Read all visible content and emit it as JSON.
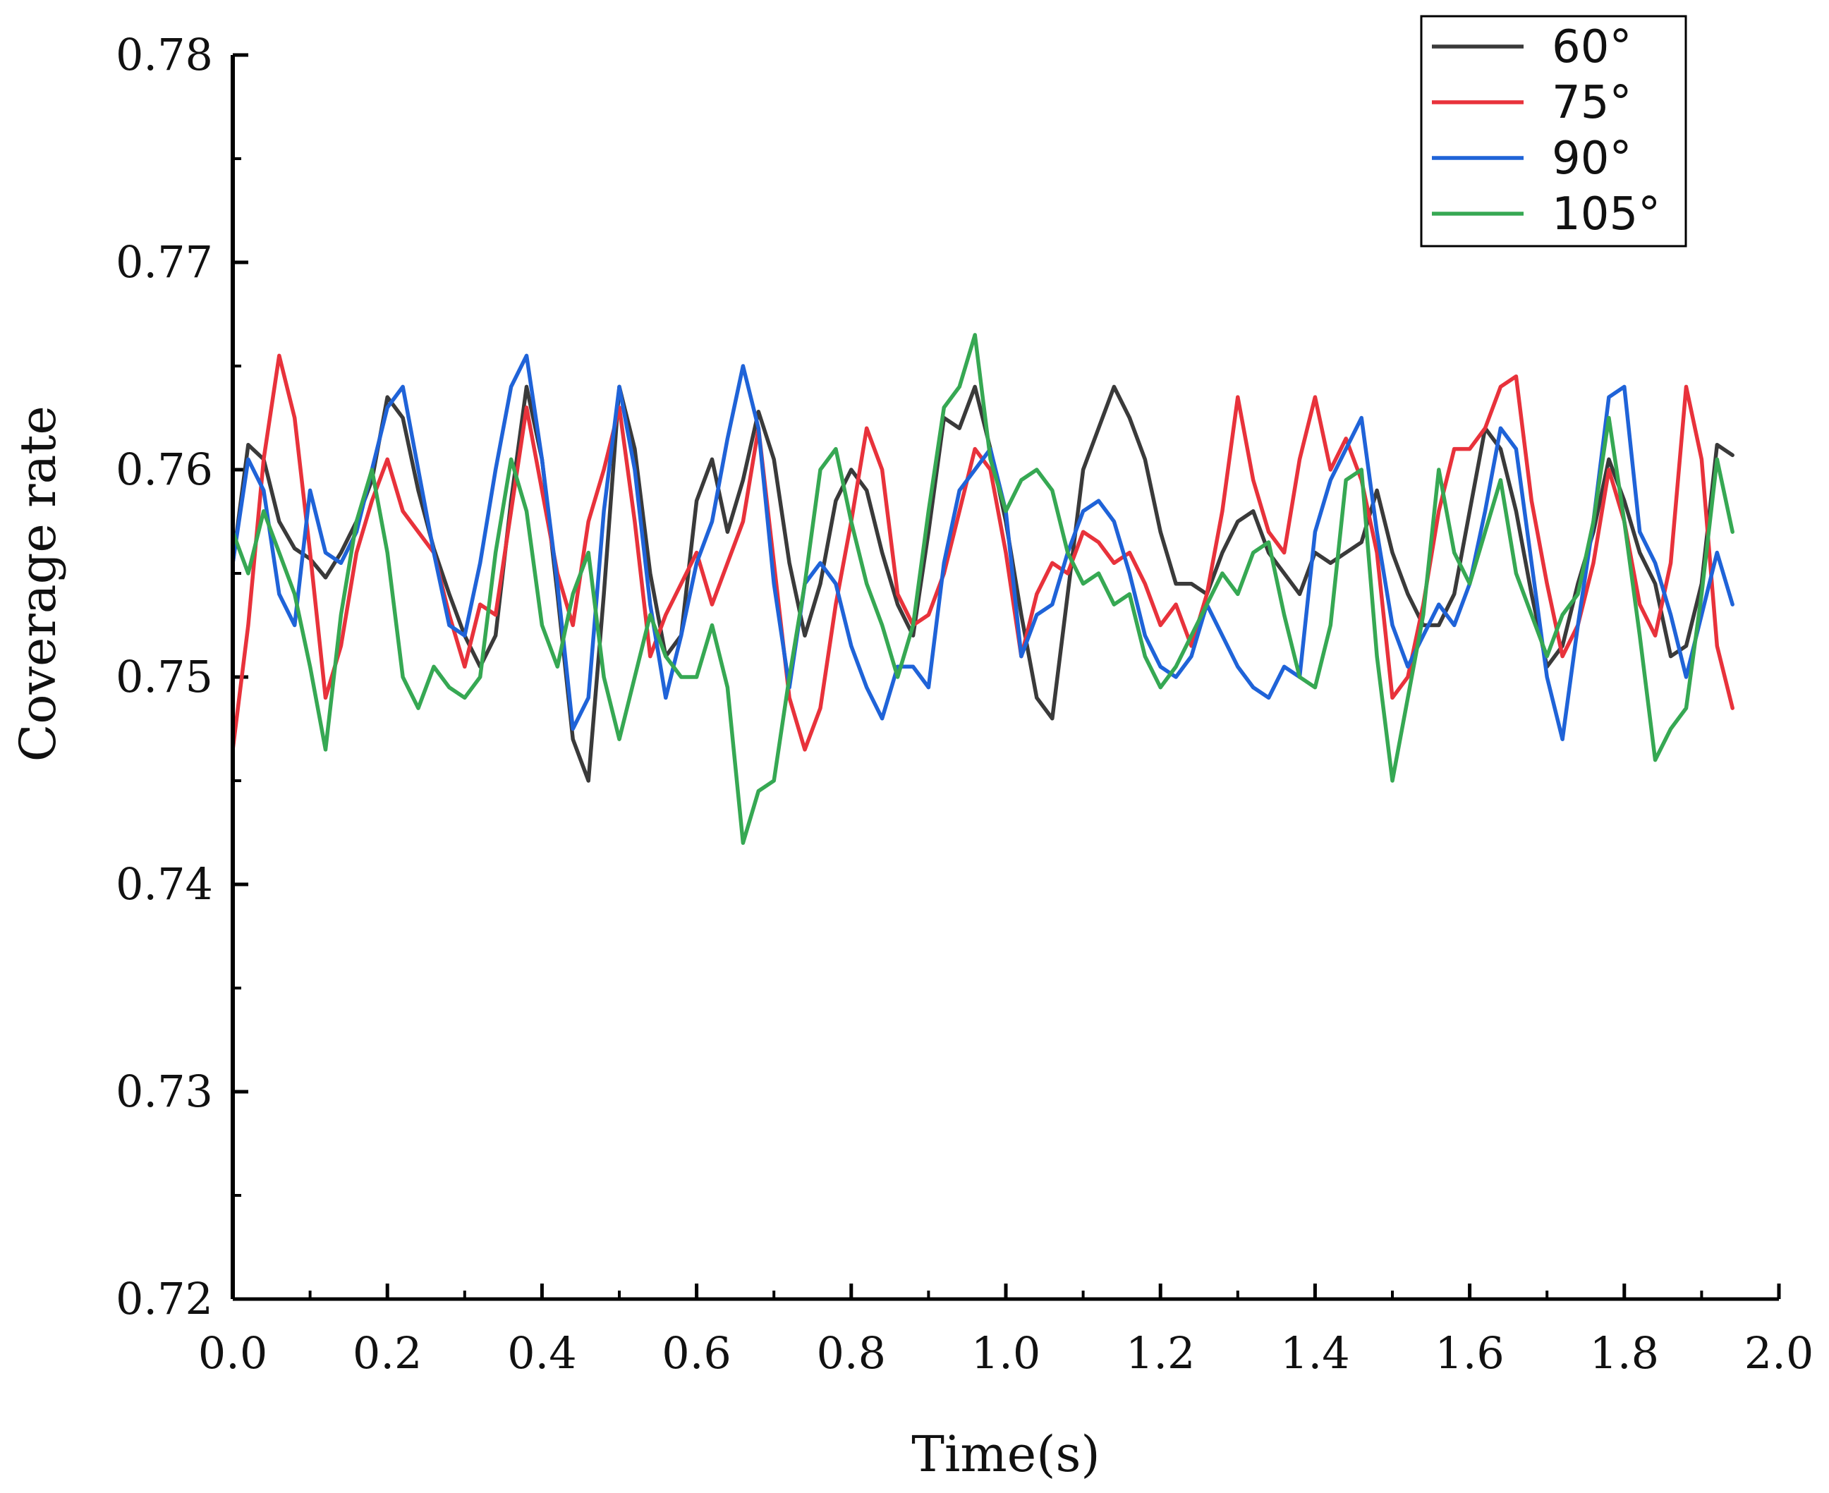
{
  "chart_data": {
    "type": "line",
    "title": "",
    "xlabel": "Time(s)",
    "ylabel": "Coverage rate",
    "xlim": [
      0.0,
      2.0
    ],
    "ylim": [
      0.72,
      0.78
    ],
    "xticks": [
      "0.0",
      "0.2",
      "0.4",
      "0.6",
      "0.8",
      "1.0",
      "1.2",
      "1.4",
      "1.6",
      "1.8",
      "2.0"
    ],
    "yticks": [
      "0.72",
      "0.73",
      "0.74",
      "0.75",
      "0.76",
      "0.77",
      "0.78"
    ],
    "legend_position": "top-right",
    "grid": false,
    "series": [
      {
        "name": "60°",
        "color": "#3a3a3a",
        "x": [
          0.0,
          0.02,
          0.04,
          0.06,
          0.08,
          0.1,
          0.12,
          0.14,
          0.16,
          0.18,
          0.2,
          0.22,
          0.24,
          0.26,
          0.28,
          0.3,
          0.32,
          0.34,
          0.36,
          0.38,
          0.4,
          0.42,
          0.44,
          0.46,
          0.48,
          0.5,
          0.52,
          0.54,
          0.56,
          0.58,
          0.6,
          0.62,
          0.64,
          0.66,
          0.68,
          0.7,
          0.72,
          0.74,
          0.76,
          0.78,
          0.8,
          0.82,
          0.84,
          0.86,
          0.88,
          0.9,
          0.92,
          0.94,
          0.96,
          0.98,
          1.0,
          1.02,
          1.04,
          1.06,
          1.08,
          1.1,
          1.12,
          1.14,
          1.16,
          1.18,
          1.2,
          1.22,
          1.24,
          1.26,
          1.28,
          1.3,
          1.32,
          1.34,
          1.36,
          1.38,
          1.4,
          1.42,
          1.44,
          1.46,
          1.48,
          1.5,
          1.52,
          1.54,
          1.56,
          1.58,
          1.6,
          1.62,
          1.64,
          1.66,
          1.68,
          1.7,
          1.72,
          1.74,
          1.76,
          1.78,
          1.8,
          1.82,
          1.84,
          1.86,
          1.88,
          1.9,
          1.92,
          1.94
        ],
        "y": [
          0.7555,
          0.7612,
          0.7605,
          0.7575,
          0.7562,
          0.7557,
          0.7548,
          0.756,
          0.7575,
          0.7595,
          0.7635,
          0.7625,
          0.759,
          0.7562,
          0.754,
          0.752,
          0.7505,
          0.752,
          0.7585,
          0.764,
          0.7605,
          0.754,
          0.747,
          0.745,
          0.754,
          0.764,
          0.761,
          0.755,
          0.751,
          0.752,
          0.7585,
          0.7605,
          0.757,
          0.7595,
          0.7628,
          0.7605,
          0.7555,
          0.752,
          0.7545,
          0.7585,
          0.76,
          0.759,
          0.756,
          0.7535,
          0.752,
          0.757,
          0.7625,
          0.762,
          0.764,
          0.761,
          0.7575,
          0.753,
          0.749,
          0.748,
          0.754,
          0.76,
          0.762,
          0.764,
          0.7625,
          0.7605,
          0.757,
          0.7545,
          0.7545,
          0.754,
          0.756,
          0.7575,
          0.758,
          0.756,
          0.755,
          0.754,
          0.756,
          0.7555,
          0.756,
          0.7565,
          0.759,
          0.756,
          0.754,
          0.7525,
          0.7525,
          0.754,
          0.758,
          0.762,
          0.761,
          0.758,
          0.754,
          0.7505,
          0.7515,
          0.7545,
          0.757,
          0.7605,
          0.7585,
          0.756,
          0.7545,
          0.751,
          0.7515,
          0.7545,
          0.7612,
          0.7607
        ]
      },
      {
        "name": "75°",
        "color": "#e8323b",
        "x": [
          0.0,
          0.02,
          0.04,
          0.06,
          0.08,
          0.1,
          0.12,
          0.14,
          0.16,
          0.18,
          0.2,
          0.22,
          0.24,
          0.26,
          0.28,
          0.3,
          0.32,
          0.34,
          0.36,
          0.38,
          0.4,
          0.42,
          0.44,
          0.46,
          0.48,
          0.5,
          0.52,
          0.54,
          0.56,
          0.58,
          0.6,
          0.62,
          0.64,
          0.66,
          0.68,
          0.7,
          0.72,
          0.74,
          0.76,
          0.78,
          0.8,
          0.82,
          0.84,
          0.86,
          0.88,
          0.9,
          0.92,
          0.94,
          0.96,
          0.98,
          1.0,
          1.02,
          1.04,
          1.06,
          1.08,
          1.1,
          1.12,
          1.14,
          1.16,
          1.18,
          1.2,
          1.22,
          1.24,
          1.26,
          1.28,
          1.3,
          1.32,
          1.34,
          1.36,
          1.38,
          1.4,
          1.42,
          1.44,
          1.46,
          1.48,
          1.5,
          1.52,
          1.54,
          1.56,
          1.58,
          1.6,
          1.62,
          1.64,
          1.66,
          1.68,
          1.7,
          1.72,
          1.74,
          1.76,
          1.78,
          1.8,
          1.82,
          1.84,
          1.86,
          1.88,
          1.9,
          1.92,
          1.94
        ],
        "y": [
          0.7465,
          0.7525,
          0.7605,
          0.7655,
          0.7625,
          0.756,
          0.749,
          0.7515,
          0.756,
          0.7585,
          0.7605,
          0.758,
          0.757,
          0.756,
          0.753,
          0.7505,
          0.7535,
          0.753,
          0.758,
          0.763,
          0.759,
          0.755,
          0.7525,
          0.7575,
          0.76,
          0.763,
          0.7575,
          0.751,
          0.753,
          0.7545,
          0.756,
          0.7535,
          0.7555,
          0.7575,
          0.762,
          0.7555,
          0.749,
          0.7465,
          0.7485,
          0.7535,
          0.7575,
          0.762,
          0.76,
          0.754,
          0.7525,
          0.753,
          0.755,
          0.758,
          0.761,
          0.76,
          0.756,
          0.751,
          0.754,
          0.7555,
          0.755,
          0.757,
          0.7565,
          0.7555,
          0.756,
          0.7545,
          0.7525,
          0.7535,
          0.7515,
          0.754,
          0.758,
          0.7635,
          0.7595,
          0.757,
          0.756,
          0.7605,
          0.7635,
          0.76,
          0.7615,
          0.7595,
          0.756,
          0.749,
          0.75,
          0.7535,
          0.758,
          0.761,
          0.761,
          0.762,
          0.764,
          0.7645,
          0.7585,
          0.7545,
          0.751,
          0.7525,
          0.7555,
          0.76,
          0.7575,
          0.7535,
          0.752,
          0.7555,
          0.764,
          0.7605,
          0.7515,
          0.7485
        ]
      },
      {
        "name": "90°",
        "color": "#1f63d8",
        "x": [
          0.0,
          0.02,
          0.04,
          0.06,
          0.08,
          0.1,
          0.12,
          0.14,
          0.16,
          0.18,
          0.2,
          0.22,
          0.24,
          0.26,
          0.28,
          0.3,
          0.32,
          0.34,
          0.36,
          0.38,
          0.4,
          0.42,
          0.44,
          0.46,
          0.48,
          0.5,
          0.52,
          0.54,
          0.56,
          0.58,
          0.6,
          0.62,
          0.64,
          0.66,
          0.68,
          0.7,
          0.72,
          0.74,
          0.76,
          0.78,
          0.8,
          0.82,
          0.84,
          0.86,
          0.88,
          0.9,
          0.92,
          0.94,
          0.96,
          0.98,
          1.0,
          1.02,
          1.04,
          1.06,
          1.08,
          1.1,
          1.12,
          1.14,
          1.16,
          1.18,
          1.2,
          1.22,
          1.24,
          1.26,
          1.28,
          1.3,
          1.32,
          1.34,
          1.36,
          1.38,
          1.4,
          1.42,
          1.44,
          1.46,
          1.48,
          1.5,
          1.52,
          1.54,
          1.56,
          1.58,
          1.6,
          1.62,
          1.64,
          1.66,
          1.68,
          1.7,
          1.72,
          1.74,
          1.76,
          1.78,
          1.8,
          1.82,
          1.84,
          1.86,
          1.88,
          1.9,
          1.92,
          1.94
        ],
        "y": [
          0.7555,
          0.7605,
          0.759,
          0.754,
          0.7525,
          0.759,
          0.756,
          0.7555,
          0.757,
          0.76,
          0.763,
          0.764,
          0.76,
          0.756,
          0.7525,
          0.752,
          0.7555,
          0.76,
          0.764,
          0.7655,
          0.7605,
          0.7545,
          0.7475,
          0.749,
          0.758,
          0.764,
          0.76,
          0.7535,
          0.749,
          0.752,
          0.7555,
          0.7575,
          0.7615,
          0.765,
          0.762,
          0.7545,
          0.7495,
          0.7545,
          0.7555,
          0.7545,
          0.7515,
          0.7495,
          0.748,
          0.7505,
          0.7505,
          0.7495,
          0.7555,
          0.759,
          0.76,
          0.761,
          0.758,
          0.751,
          0.753,
          0.7535,
          0.756,
          0.758,
          0.7585,
          0.7575,
          0.755,
          0.752,
          0.7505,
          0.75,
          0.751,
          0.7535,
          0.752,
          0.7505,
          0.7495,
          0.749,
          0.7505,
          0.75,
          0.757,
          0.7595,
          0.761,
          0.7625,
          0.757,
          0.7525,
          0.7505,
          0.752,
          0.7535,
          0.7525,
          0.7545,
          0.758,
          0.762,
          0.761,
          0.7555,
          0.75,
          0.747,
          0.7525,
          0.7575,
          0.7635,
          0.764,
          0.757,
          0.7555,
          0.753,
          0.75,
          0.753,
          0.756,
          0.7535
        ]
      },
      {
        "name": "105°",
        "color": "#36a853",
        "x": [
          0.0,
          0.02,
          0.04,
          0.06,
          0.08,
          0.1,
          0.12,
          0.14,
          0.16,
          0.18,
          0.2,
          0.22,
          0.24,
          0.26,
          0.28,
          0.3,
          0.32,
          0.34,
          0.36,
          0.38,
          0.4,
          0.42,
          0.44,
          0.46,
          0.48,
          0.5,
          0.52,
          0.54,
          0.56,
          0.58,
          0.6,
          0.62,
          0.64,
          0.66,
          0.68,
          0.7,
          0.72,
          0.74,
          0.76,
          0.78,
          0.8,
          0.82,
          0.84,
          0.86,
          0.88,
          0.9,
          0.92,
          0.94,
          0.96,
          0.98,
          1.0,
          1.02,
          1.04,
          1.06,
          1.08,
          1.1,
          1.12,
          1.14,
          1.16,
          1.18,
          1.2,
          1.22,
          1.24,
          1.26,
          1.28,
          1.3,
          1.32,
          1.34,
          1.36,
          1.38,
          1.4,
          1.42,
          1.44,
          1.46,
          1.48,
          1.5,
          1.52,
          1.54,
          1.56,
          1.58,
          1.6,
          1.62,
          1.64,
          1.66,
          1.68,
          1.7,
          1.72,
          1.74,
          1.76,
          1.78,
          1.8,
          1.82,
          1.84,
          1.86,
          1.88,
          1.9,
          1.92,
          1.94
        ],
        "y": [
          0.757,
          0.755,
          0.758,
          0.756,
          0.754,
          0.7505,
          0.7465,
          0.753,
          0.7575,
          0.76,
          0.756,
          0.75,
          0.7485,
          0.7505,
          0.7495,
          0.749,
          0.75,
          0.756,
          0.7605,
          0.758,
          0.7525,
          0.7505,
          0.754,
          0.756,
          0.75,
          0.747,
          0.75,
          0.753,
          0.751,
          0.75,
          0.75,
          0.7525,
          0.7495,
          0.742,
          0.7445,
          0.745,
          0.75,
          0.7545,
          0.76,
          0.761,
          0.7575,
          0.7545,
          0.7525,
          0.75,
          0.7525,
          0.758,
          0.763,
          0.764,
          0.7665,
          0.7605,
          0.758,
          0.7595,
          0.76,
          0.759,
          0.756,
          0.7545,
          0.755,
          0.7535,
          0.754,
          0.751,
          0.7495,
          0.7505,
          0.752,
          0.7535,
          0.755,
          0.754,
          0.756,
          0.7565,
          0.753,
          0.75,
          0.7495,
          0.7525,
          0.7595,
          0.76,
          0.751,
          0.745,
          0.749,
          0.753,
          0.76,
          0.756,
          0.7545,
          0.757,
          0.7595,
          0.755,
          0.753,
          0.751,
          0.753,
          0.754,
          0.7575,
          0.7625,
          0.7575,
          0.752,
          0.746,
          0.7475,
          0.7485,
          0.754,
          0.7605,
          0.757
        ]
      }
    ]
  }
}
